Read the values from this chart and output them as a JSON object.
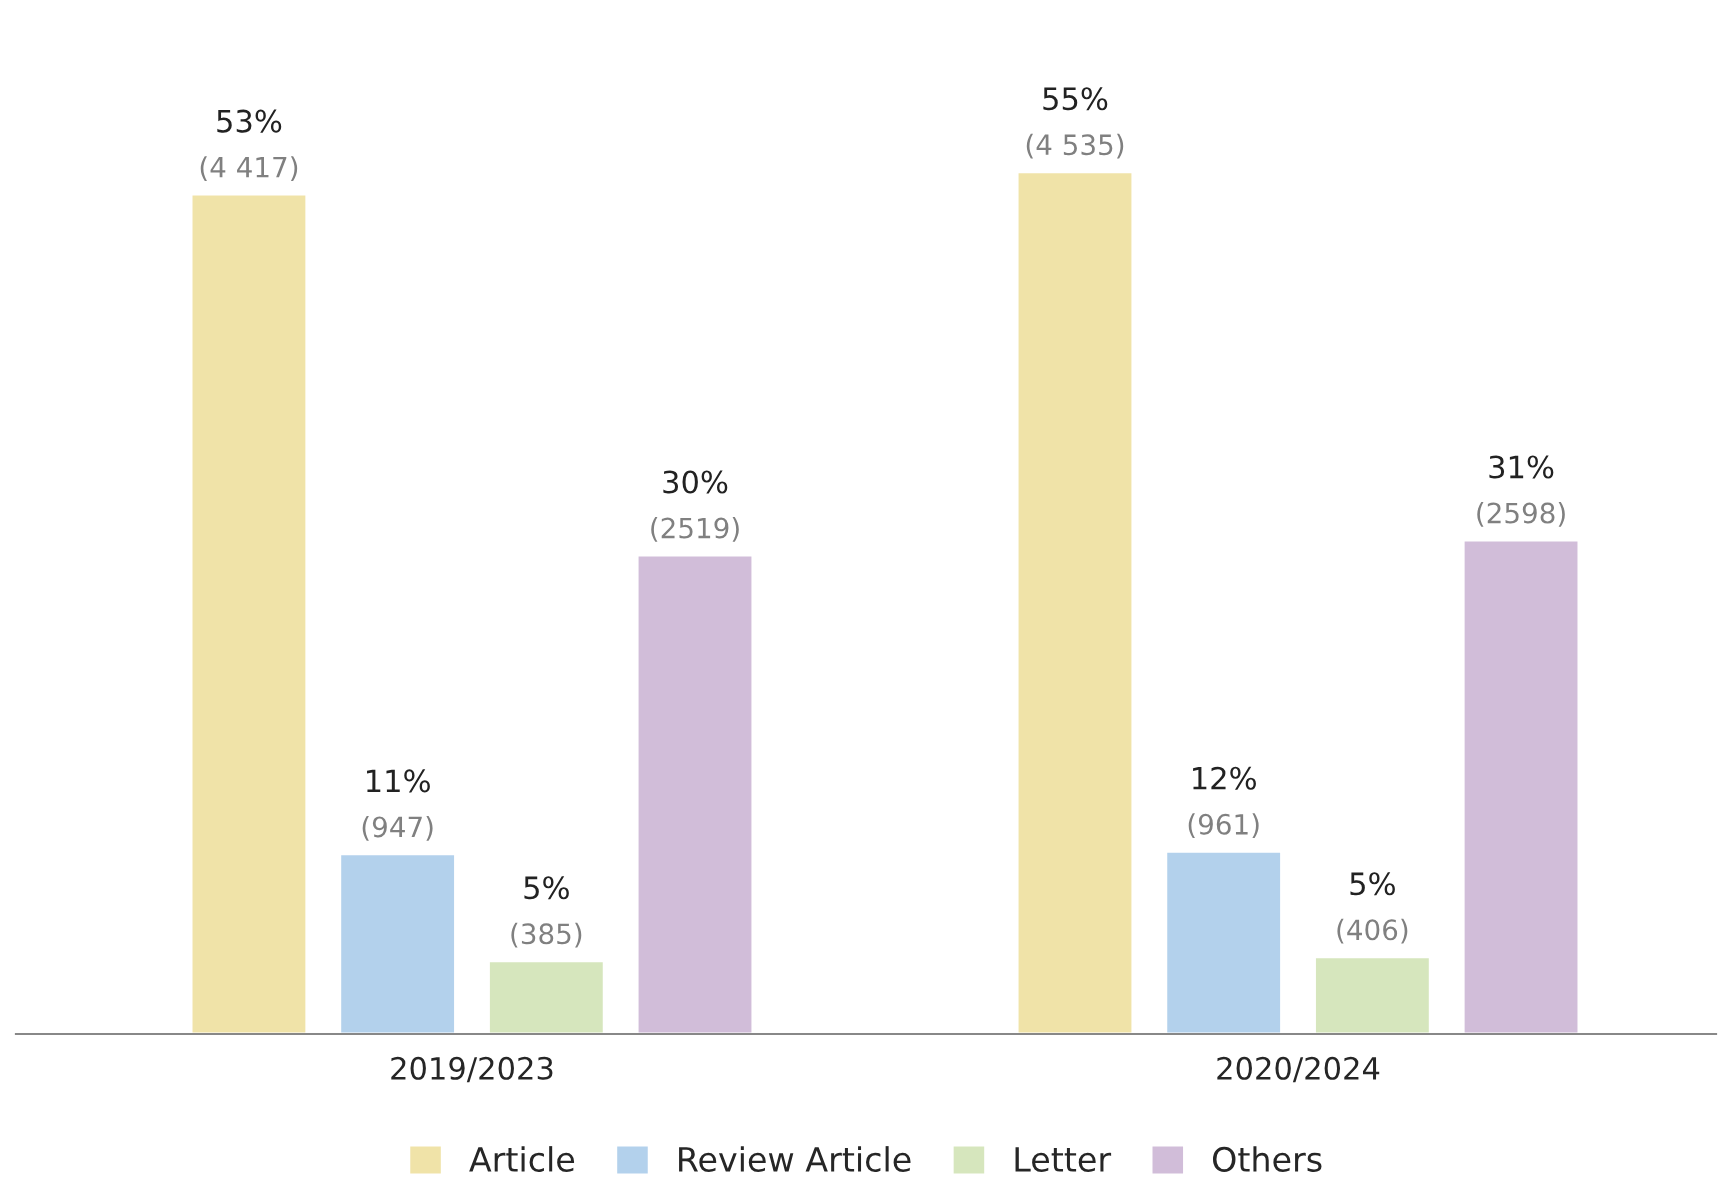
{
  "chart_data": {
    "type": "bar",
    "categories": [
      "2019/2023",
      "2020/2024"
    ],
    "series": [
      {
        "name": "Article",
        "color": "#f0e3a8",
        "values": [
          4417,
          4535
        ],
        "value_labels": [
          "53%\n(4 417)",
          "55%\n(4 535)"
        ]
      },
      {
        "name": "Review Article",
        "color": "#b3d1ec",
        "values": [
          947,
          961
        ],
        "value_labels": [
          "11%\n(947)",
          "12%\n(961)"
        ]
      },
      {
        "name": "Letter",
        "color": "#d6e6bd",
        "values": [
          385,
          406
        ],
        "value_labels": [
          "5%\n(385)",
          "5%\n(406)"
        ]
      },
      {
        "name": "Others",
        "color": "#d1bdd9",
        "values": [
          2519,
          2598
        ],
        "value_labels": [
          "30%\n(2519)",
          "31%\n(2598)"
        ]
      }
    ],
    "legend": "bottom",
    "grid": false
  }
}
